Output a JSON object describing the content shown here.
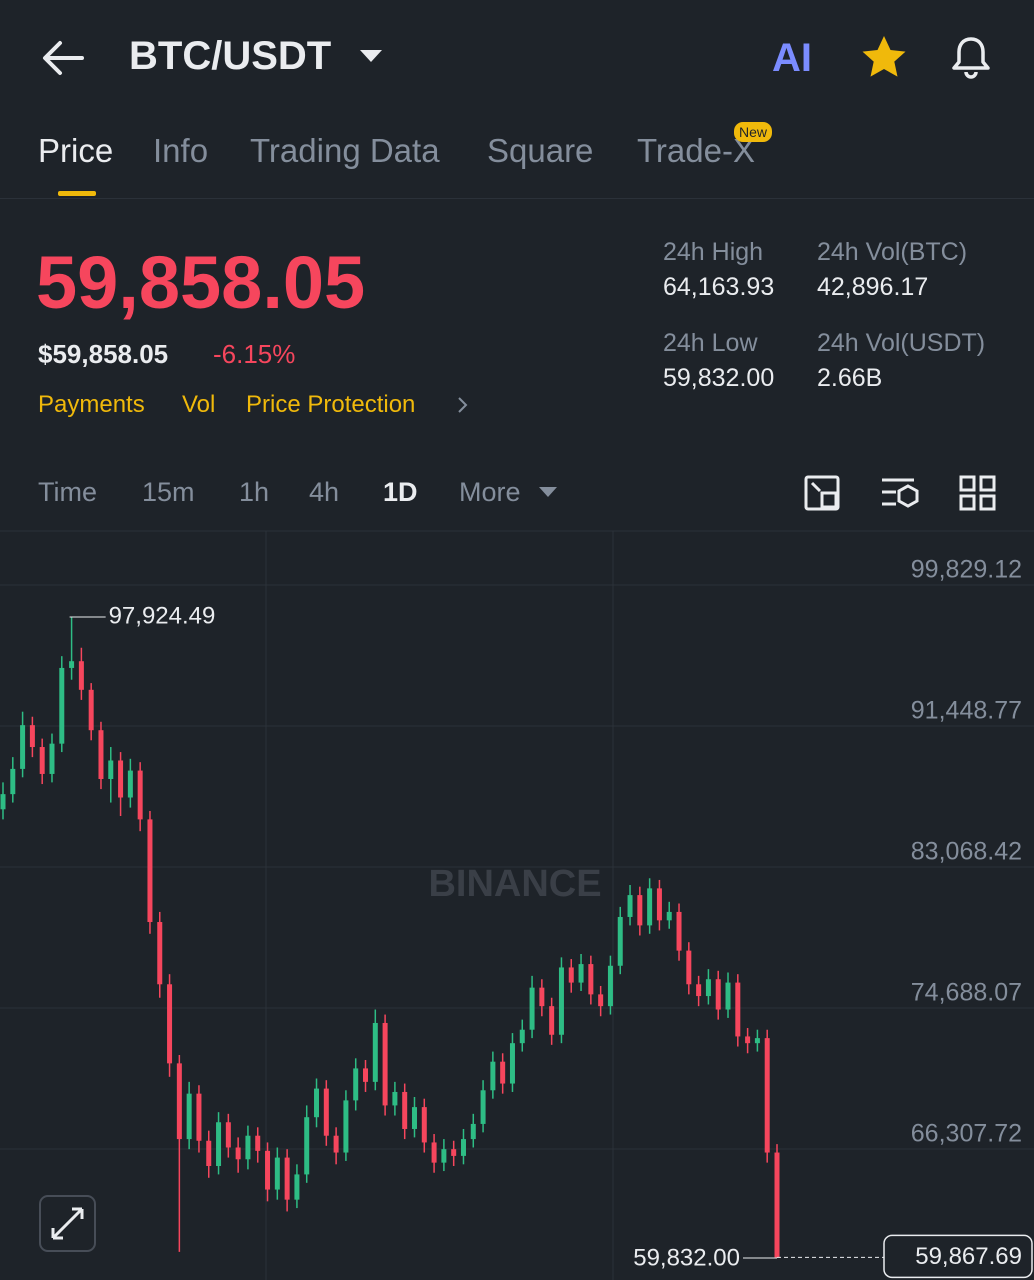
{
  "header": {
    "pair": "BTC/USDT",
    "ai": "AI"
  },
  "tabs": [
    "Price",
    "Info",
    "Trading Data",
    "Square",
    "Trade-X"
  ],
  "badge": "New",
  "price": {
    "last": "59,858.05",
    "usd": "$59,858.05",
    "change": "-6.15%"
  },
  "links": [
    "Payments",
    "Vol",
    "Price Protection"
  ],
  "stats": [
    {
      "label": "24h High",
      "value": "64,163.93"
    },
    {
      "label": "24h Vol(BTC)",
      "value": "42,896.17"
    },
    {
      "label": "24h Low",
      "value": "59,832.00"
    },
    {
      "label": "24h Vol(USDT)",
      "value": "2.66B"
    }
  ],
  "intervals": [
    "Time",
    "15m",
    "1h",
    "4h",
    "1D",
    "More"
  ],
  "chart_data": {
    "type": "candlestick",
    "watermark": "BINANCE",
    "up_color": "#2ebd85",
    "down_color": "#f6465d",
    "ylim": [
      58525,
      103098
    ],
    "yticks": [
      {
        "value": 99829.12,
        "label": "99,829.12"
      },
      {
        "value": 91448.77,
        "label": "91,448.77"
      },
      {
        "value": 83068.42,
        "label": "83,068.42"
      },
      {
        "value": 74688.07,
        "label": "74,688.07"
      },
      {
        "value": 66307.72,
        "label": "66,307.72"
      }
    ],
    "max_label": "97,924.49",
    "min_label": "59,832.00",
    "last_label": "59,867.69",
    "open": [
      86500,
      87400,
      88900,
      91500,
      90200,
      88600,
      90400,
      94900,
      95300,
      93600,
      91200,
      88300,
      89400,
      87200,
      88800,
      85900,
      79800,
      76100,
      71400,
      66900,
      69600,
      66800,
      65300,
      67900,
      66400,
      65700,
      67100,
      66200,
      63900,
      65800,
      63300,
      64800,
      68200,
      69900,
      67100,
      66100,
      69200,
      71100,
      70300,
      73800,
      68900,
      69700,
      67500,
      68800,
      66700,
      65500,
      66300,
      65900,
      66900,
      67800,
      69800,
      71500,
      70200,
      72600,
      73400,
      75900,
      74800,
      73100,
      77100,
      76200,
      77300,
      75500,
      74800,
      77200,
      80100,
      81400,
      79600,
      81800,
      79900,
      80400,
      78100,
      76100,
      75400,
      76400,
      74600,
      76200,
      73000,
      72600,
      72900,
      66100
    ],
    "high": [
      88100,
      89600,
      92300,
      92000,
      90700,
      91000,
      95600,
      97924.49,
      96100,
      94000,
      91700,
      90200,
      89900,
      89500,
      89300,
      86400,
      80400,
      76700,
      71900,
      70300,
      70100,
      67400,
      68500,
      68400,
      67000,
      67700,
      67600,
      66700,
      66400,
      66300,
      65400,
      68900,
      70500,
      70400,
      67600,
      69800,
      71700,
      71600,
      74600,
      74300,
      70300,
      70200,
      69400,
      69300,
      67200,
      66900,
      66800,
      67500,
      68400,
      70400,
      72100,
      72000,
      73200,
      74000,
      76600,
      76400,
      75300,
      77700,
      77600,
      77900,
      77800,
      76000,
      77800,
      80700,
      82000,
      81900,
      82400,
      82300,
      81000,
      80900,
      78600,
      76600,
      77000,
      76900,
      76800,
      76700,
      73500,
      73400,
      73400,
      66600
    ],
    "low": [
      85900,
      86900,
      88400,
      89600,
      88000,
      88100,
      89900,
      94200,
      93000,
      90600,
      87700,
      86900,
      86100,
      86600,
      85200,
      79100,
      75300,
      70600,
      60200,
      66300,
      66100,
      64600,
      64800,
      65800,
      64900,
      65100,
      65500,
      63200,
      63300,
      62600,
      62800,
      64300,
      67600,
      66500,
      65400,
      65600,
      68600,
      69700,
      69800,
      68300,
      68300,
      66900,
      67000,
      66100,
      64900,
      65000,
      65300,
      65400,
      66400,
      67300,
      69300,
      69600,
      69700,
      72100,
      72900,
      74200,
      72500,
      72600,
      75600,
      75700,
      74900,
      74200,
      74300,
      76700,
      79600,
      79000,
      79100,
      79300,
      79400,
      77500,
      75500,
      74800,
      74900,
      74000,
      74100,
      72400,
      72000,
      72100,
      65500,
      59832
    ],
    "close": [
      87400,
      88900,
      91500,
      90200,
      88600,
      90400,
      94900,
      95300,
      93600,
      91200,
      88300,
      89400,
      87200,
      88800,
      85900,
      79800,
      76100,
      71400,
      66900,
      69600,
      66800,
      65300,
      67900,
      66400,
      65700,
      67100,
      66200,
      63900,
      65800,
      63300,
      64800,
      68200,
      69900,
      67100,
      66100,
      69200,
      71100,
      70300,
      73800,
      68900,
      69700,
      67500,
      68800,
      66700,
      65500,
      66300,
      65900,
      66900,
      67800,
      69800,
      71500,
      70200,
      72600,
      73400,
      75900,
      74800,
      73100,
      77100,
      76200,
      77300,
      75500,
      74800,
      77200,
      80100,
      81400,
      79600,
      81800,
      79900,
      80400,
      78100,
      76100,
      75400,
      76400,
      74600,
      76200,
      73000,
      72600,
      72900,
      66100,
      59867.69
    ]
  }
}
